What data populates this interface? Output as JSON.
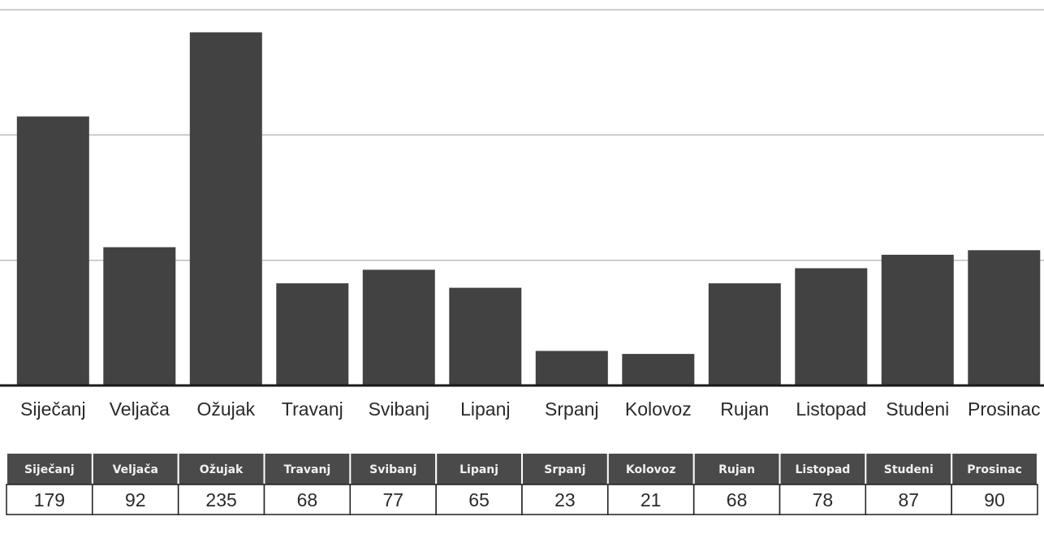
{
  "chart_data": {
    "type": "bar",
    "categories": [
      "Siječanj",
      "Veljača",
      "Ožujak",
      "Travanj",
      "Svibanj",
      "Lipanj",
      "Srpanj",
      "Kolovoz",
      "Rujan",
      "Listopad",
      "Studeni",
      "Prosinac"
    ],
    "values": [
      179,
      92,
      235,
      68,
      77,
      65,
      23,
      21,
      68,
      78,
      87,
      90
    ],
    "title": "",
    "xlabel": "",
    "ylabel": "",
    "ylim": [
      0,
      250
    ],
    "grid": true,
    "gridlines_at": [
      0,
      83.33,
      166.67,
      250
    ],
    "colors": {
      "bar": "#424242",
      "table_header": "#4a4a4a",
      "grid": "#bdbdbd"
    },
    "table": {
      "headers": [
        "Siječanj",
        "Veljača",
        "Ožujak",
        "Travanj",
        "Svibanj",
        "Lipanj",
        "Srpanj",
        "Kolovoz",
        "Rujan",
        "Listopad",
        "Studeni",
        "Prosinac"
      ],
      "values": [
        "179",
        "92",
        "235",
        "68",
        "77",
        "65",
        "23",
        "21",
        "68",
        "78",
        "87",
        "90"
      ]
    }
  }
}
